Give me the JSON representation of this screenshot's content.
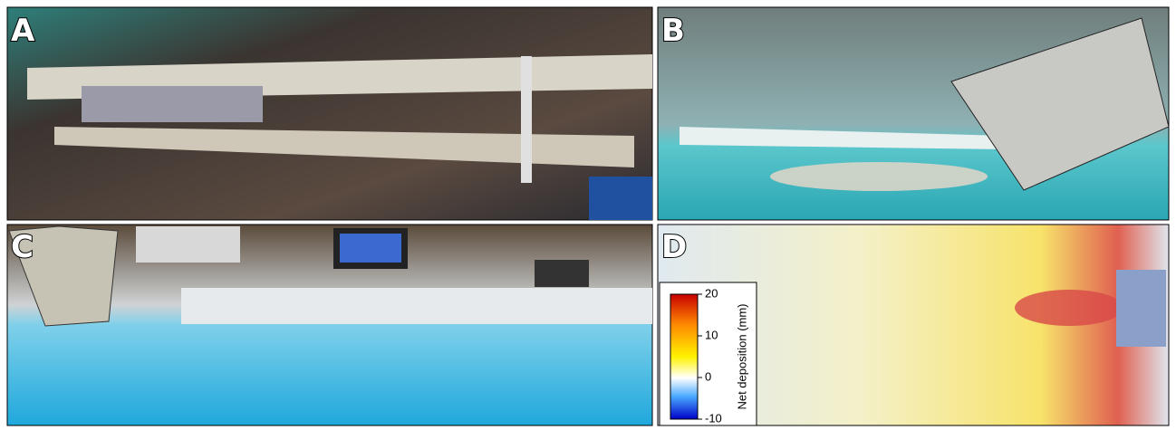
{
  "panels": [
    {
      "label": "A"
    },
    {
      "label": "B"
    },
    {
      "label": "C"
    },
    {
      "label": "D"
    }
  ],
  "colorbar": {
    "label": "Net deposition (mm)",
    "lim": [
      -10,
      20
    ],
    "ticks": [
      20,
      10,
      0,
      -10
    ]
  }
}
